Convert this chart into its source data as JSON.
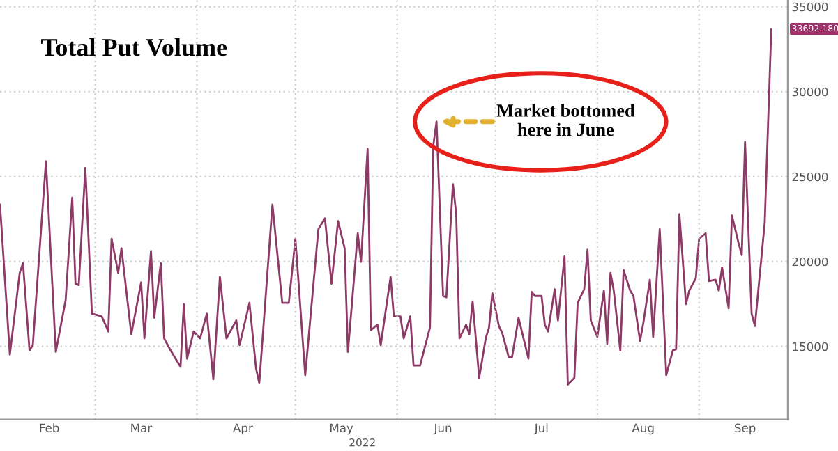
{
  "chart_data": {
    "type": "line",
    "title": "Total Put Volume",
    "xlabel": "2022",
    "x": [
      "2022-01-31",
      "2022-02-03",
      "2022-02-06",
      "2022-02-07",
      "2022-02-09",
      "2022-02-10",
      "2022-02-14",
      "2022-02-17",
      "2022-02-20",
      "2022-02-22",
      "2022-02-23",
      "2022-02-24",
      "2022-02-26",
      "2022-02-28",
      "2022-03-03",
      "2022-03-05",
      "2022-03-06",
      "2022-03-08",
      "2022-03-09",
      "2022-03-12",
      "2022-03-15",
      "2022-03-16",
      "2022-03-18",
      "2022-03-19",
      "2022-03-21",
      "2022-03-22",
      "2022-03-24",
      "2022-03-27",
      "2022-03-28",
      "2022-03-29",
      "2022-03-31",
      "2022-04-02",
      "2022-04-04",
      "2022-04-06",
      "2022-04-08",
      "2022-04-10",
      "2022-04-13",
      "2022-04-14",
      "2022-04-17",
      "2022-04-19",
      "2022-04-20",
      "2022-04-24",
      "2022-04-27",
      "2022-04-29",
      "2022-05-01",
      "2022-05-04",
      "2022-05-08",
      "2022-05-10",
      "2022-05-12",
      "2022-05-14",
      "2022-05-16",
      "2022-05-17",
      "2022-05-20",
      "2022-05-21",
      "2022-05-23",
      "2022-05-24",
      "2022-05-26",
      "2022-05-27",
      "2022-05-30",
      "2022-05-31",
      "2022-06-02",
      "2022-06-03",
      "2022-06-05",
      "2022-06-06",
      "2022-06-08",
      "2022-06-11",
      "2022-06-12",
      "2022-06-13",
      "2022-06-15",
      "2022-06-16",
      "2022-06-18",
      "2022-06-19",
      "2022-06-20",
      "2022-06-22",
      "2022-06-23",
      "2022-06-24",
      "2022-06-26",
      "2022-06-28",
      "2022-06-29",
      "2022-06-30",
      "2022-07-02",
      "2022-07-03",
      "2022-07-05",
      "2022-07-06",
      "2022-07-08",
      "2022-07-11",
      "2022-07-12",
      "2022-07-13",
      "2022-07-15",
      "2022-07-16",
      "2022-07-17",
      "2022-07-19",
      "2022-07-20",
      "2022-07-22",
      "2022-07-23",
      "2022-07-25",
      "2022-07-26",
      "2022-07-28",
      "2022-07-29",
      "2022-07-30",
      "2022-08-01",
      "2022-08-03",
      "2022-08-04",
      "2022-08-05",
      "2022-08-06",
      "2022-08-08",
      "2022-08-09",
      "2022-08-11",
      "2022-08-12",
      "2022-08-14",
      "2022-08-15",
      "2022-08-17",
      "2022-08-18",
      "2022-08-20",
      "2022-08-22",
      "2022-08-24",
      "2022-08-25",
      "2022-08-26",
      "2022-08-28",
      "2022-08-29",
      "2022-08-31",
      "2022-09-01",
      "2022-09-03",
      "2022-09-04",
      "2022-09-06",
      "2022-09-07",
      "2022-09-08",
      "2022-09-10",
      "2022-09-11",
      "2022-09-13",
      "2022-09-14",
      "2022-09-15",
      "2022-09-17",
      "2022-09-18",
      "2022-09-21",
      "2022-09-23"
    ],
    "series": [
      {
        "color": "#8e3a66",
        "values": [
          23350,
          14520,
          19330,
          19900,
          14760,
          15080,
          25900,
          14680,
          17730,
          23750,
          18690,
          18610,
          25510,
          16930,
          16770,
          15880,
          21340,
          19330,
          20780,
          15720,
          18770,
          15480,
          20620,
          16690,
          19900,
          15480,
          14760,
          13800,
          17490,
          14280,
          15880,
          15480,
          16930,
          13070,
          19090,
          15480,
          16530,
          15080,
          17570,
          13720,
          12830,
          23350,
          17570,
          17570,
          21340,
          13310,
          21900,
          22540,
          18690,
          22380,
          20780,
          14680,
          21660,
          19980,
          26640,
          15960,
          16280,
          15080,
          19090,
          16770,
          16770,
          15480,
          16770,
          13880,
          13880,
          16120,
          26800,
          28240,
          17970,
          17890,
          24550,
          22790,
          15480,
          16280,
          15720,
          17650,
          13150,
          15480,
          16120,
          18130,
          16200,
          15800,
          14360,
          14360,
          16690,
          14280,
          18210,
          17970,
          17970,
          16280,
          15880,
          18370,
          16530,
          20300,
          12750,
          13150,
          17570,
          18370,
          20700,
          16530,
          15560,
          18290,
          15160,
          19330,
          18290,
          14760,
          19490,
          18290,
          17970,
          15320,
          16370,
          18930,
          15560,
          21900,
          13310,
          14760,
          14840,
          22790,
          17490,
          18290,
          19010,
          21340,
          21660,
          18850,
          18930,
          18290,
          19650,
          17250,
          22710,
          21100,
          20380,
          27040,
          16930,
          16200,
          22300,
          33692
        ]
      }
    ],
    "xlim": [
      "2022-01-31",
      "2022-09-28"
    ],
    "xticks": [
      {
        "value": "2022-02-15",
        "label": "Feb"
      },
      {
        "value": "2022-03-01",
        "label": null
      },
      {
        "value": "2022-03-15",
        "label": "Mar"
      },
      {
        "value": "2022-04-01",
        "label": null
      },
      {
        "value": "2022-04-15",
        "label": "Apr"
      },
      {
        "value": "2022-05-01",
        "label": null
      },
      {
        "value": "2022-05-15",
        "label": "May"
      },
      {
        "value": "2022-06-01",
        "label": null
      },
      {
        "value": "2022-06-15",
        "label": "Jun"
      },
      {
        "value": "2022-07-01",
        "label": null
      },
      {
        "value": "2022-07-15",
        "label": "Jul"
      },
      {
        "value": "2022-08-01",
        "label": null
      },
      {
        "value": "2022-08-15",
        "label": "Aug"
      },
      {
        "value": "2022-09-01",
        "label": null
      },
      {
        "value": "2022-09-15",
        "label": "Sep"
      }
    ],
    "ylim": [
      10700,
      35400
    ],
    "yticks": [
      15000,
      20000,
      25000,
      30000,
      35000
    ],
    "grid": true,
    "annotations": [
      {
        "text": "Market bottomed\nhere in June",
        "x": "2022-06-13",
        "y": 28240
      },
      {
        "text": "33692.180",
        "x": "2022-09-23",
        "y": 33692
      }
    ]
  }
}
